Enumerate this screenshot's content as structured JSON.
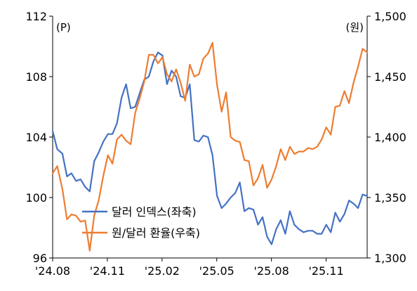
{
  "chart_data": {
    "type": "line",
    "title": "",
    "left_axis": {
      "unit_label": "(P)",
      "ylim": [
        96,
        112
      ],
      "ticks": [
        "96",
        "100",
        "104",
        "108",
        "112"
      ]
    },
    "right_axis": {
      "unit_label": "(원)",
      "ylim": [
        1300,
        1500
      ],
      "ticks": [
        "1,300",
        "1,350",
        "1,400",
        "1,450",
        "1,500"
      ]
    },
    "x_axis": {
      "tick_labels": [
        "'24.08",
        "'24.11",
        "'25.02",
        "'25.05",
        "'25.08",
        "'25.11"
      ],
      "start": "2024-08",
      "end": "2025-11-28"
    },
    "grid": false,
    "legend": {
      "placement": "bottom-left"
    },
    "series": [
      {
        "name": "달러 인덱스(좌축)",
        "axis": "left",
        "color": "#4472C4",
        "points": [
          [
            "2024-08-01",
            104.4
          ],
          [
            "2024-08-08",
            103.2
          ],
          [
            "2024-08-16",
            102.9
          ],
          [
            "2024-08-23",
            101.4
          ],
          [
            "2024-08-30",
            101.6
          ],
          [
            "2024-09-06",
            101.1
          ],
          [
            "2024-09-13",
            101.2
          ],
          [
            "2024-09-20",
            100.7
          ],
          [
            "2024-09-27",
            100.4
          ],
          [
            "2024-10-04",
            102.4
          ],
          [
            "2024-10-11",
            103.0
          ],
          [
            "2024-10-18",
            103.7
          ],
          [
            "2024-10-25",
            104.2
          ],
          [
            "2024-11-01",
            104.2
          ],
          [
            "2024-11-08",
            104.9
          ],
          [
            "2024-11-15",
            106.6
          ],
          [
            "2024-11-22",
            107.5
          ],
          [
            "2024-11-29",
            105.9
          ],
          [
            "2024-12-06",
            106.0
          ],
          [
            "2024-12-13",
            106.9
          ],
          [
            "2024-12-20",
            107.8
          ],
          [
            "2024-12-27",
            108.0
          ],
          [
            "2025-01-03",
            109.0
          ],
          [
            "2025-01-10",
            109.6
          ],
          [
            "2025-01-17",
            109.4
          ],
          [
            "2025-01-24",
            107.5
          ],
          [
            "2025-01-31",
            108.4
          ],
          [
            "2025-02-07",
            108.0
          ],
          [
            "2025-02-14",
            106.7
          ],
          [
            "2025-02-21",
            106.6
          ],
          [
            "2025-02-28",
            107.5
          ],
          [
            "2025-03-07",
            103.8
          ],
          [
            "2025-03-14",
            103.7
          ],
          [
            "2025-03-21",
            104.1
          ],
          [
            "2025-03-28",
            104.0
          ],
          [
            "2025-04-04",
            102.8
          ],
          [
            "2025-04-11",
            100.1
          ],
          [
            "2025-04-18",
            99.3
          ],
          [
            "2025-04-25",
            99.6
          ],
          [
            "2025-05-02",
            100.0
          ],
          [
            "2025-05-09",
            100.3
          ],
          [
            "2025-05-16",
            101.0
          ],
          [
            "2025-05-23",
            99.1
          ],
          [
            "2025-05-30",
            99.3
          ],
          [
            "2025-06-06",
            99.2
          ],
          [
            "2025-06-13",
            98.2
          ],
          [
            "2025-06-20",
            98.7
          ],
          [
            "2025-06-27",
            97.4
          ],
          [
            "2025-07-04",
            96.9
          ],
          [
            "2025-07-11",
            97.9
          ],
          [
            "2025-07-18",
            98.5
          ],
          [
            "2025-07-25",
            97.6
          ],
          [
            "2025-08-01",
            99.1
          ],
          [
            "2025-08-08",
            98.2
          ],
          [
            "2025-08-15",
            97.9
          ],
          [
            "2025-08-22",
            97.7
          ],
          [
            "2025-08-29",
            97.8
          ],
          [
            "2025-09-05",
            97.8
          ],
          [
            "2025-09-12",
            97.6
          ],
          [
            "2025-09-19",
            97.6
          ],
          [
            "2025-09-26",
            98.2
          ],
          [
            "2025-10-03",
            97.7
          ],
          [
            "2025-10-10",
            99.0
          ],
          [
            "2025-10-17",
            98.4
          ],
          [
            "2025-10-24",
            98.9
          ],
          [
            "2025-10-31",
            99.8
          ],
          [
            "2025-11-07",
            99.6
          ],
          [
            "2025-11-14",
            99.3
          ],
          [
            "2025-11-21",
            100.2
          ],
          [
            "2025-11-28",
            100.1
          ]
        ]
      },
      {
        "name": "원/달러 환율(우축)",
        "axis": "right",
        "color": "#ED7D31",
        "points": [
          [
            "2024-08-01",
            1370
          ],
          [
            "2024-08-08",
            1376
          ],
          [
            "2024-08-16",
            1357
          ],
          [
            "2024-08-23",
            1332
          ],
          [
            "2024-08-30",
            1336
          ],
          [
            "2024-09-06",
            1335
          ],
          [
            "2024-09-13",
            1330
          ],
          [
            "2024-09-20",
            1331
          ],
          [
            "2024-09-27",
            1306
          ],
          [
            "2024-10-04",
            1335
          ],
          [
            "2024-10-11",
            1348
          ],
          [
            "2024-10-18",
            1368
          ],
          [
            "2024-10-25",
            1385
          ],
          [
            "2024-11-01",
            1378
          ],
          [
            "2024-11-08",
            1398
          ],
          [
            "2024-11-15",
            1402
          ],
          [
            "2024-11-22",
            1397
          ],
          [
            "2024-11-29",
            1394
          ],
          [
            "2024-12-06",
            1420
          ],
          [
            "2024-12-13",
            1432
          ],
          [
            "2024-12-20",
            1446
          ],
          [
            "2024-12-27",
            1468
          ],
          [
            "2025-01-03",
            1468
          ],
          [
            "2025-01-10",
            1461
          ],
          [
            "2025-01-17",
            1466
          ],
          [
            "2025-01-24",
            1452
          ],
          [
            "2025-01-31",
            1446
          ],
          [
            "2025-02-07",
            1456
          ],
          [
            "2025-02-14",
            1445
          ],
          [
            "2025-02-21",
            1430
          ],
          [
            "2025-02-28",
            1460
          ],
          [
            "2025-03-07",
            1450
          ],
          [
            "2025-03-14",
            1452
          ],
          [
            "2025-03-21",
            1465
          ],
          [
            "2025-03-28",
            1469
          ],
          [
            "2025-04-04",
            1478
          ],
          [
            "2025-04-11",
            1443
          ],
          [
            "2025-04-18",
            1421
          ],
          [
            "2025-04-25",
            1437
          ],
          [
            "2025-05-02",
            1400
          ],
          [
            "2025-05-09",
            1397
          ],
          [
            "2025-05-16",
            1396
          ],
          [
            "2025-05-23",
            1381
          ],
          [
            "2025-05-30",
            1380
          ],
          [
            "2025-06-06",
            1360
          ],
          [
            "2025-06-13",
            1366
          ],
          [
            "2025-06-20",
            1377
          ],
          [
            "2025-06-27",
            1358
          ],
          [
            "2025-07-04",
            1365
          ],
          [
            "2025-07-11",
            1376
          ],
          [
            "2025-07-18",
            1390
          ],
          [
            "2025-07-25",
            1381
          ],
          [
            "2025-08-01",
            1392
          ],
          [
            "2025-08-08",
            1386
          ],
          [
            "2025-08-15",
            1388
          ],
          [
            "2025-08-22",
            1388
          ],
          [
            "2025-08-29",
            1391
          ],
          [
            "2025-09-05",
            1390
          ],
          [
            "2025-09-12",
            1392
          ],
          [
            "2025-09-19",
            1398
          ],
          [
            "2025-09-26",
            1408
          ],
          [
            "2025-10-03",
            1402
          ],
          [
            "2025-10-10",
            1425
          ],
          [
            "2025-10-17",
            1426
          ],
          [
            "2025-10-24",
            1438
          ],
          [
            "2025-10-31",
            1428
          ],
          [
            "2025-11-07",
            1445
          ],
          [
            "2025-11-14",
            1458
          ],
          [
            "2025-11-21",
            1473
          ],
          [
            "2025-11-28",
            1470
          ]
        ]
      }
    ]
  }
}
